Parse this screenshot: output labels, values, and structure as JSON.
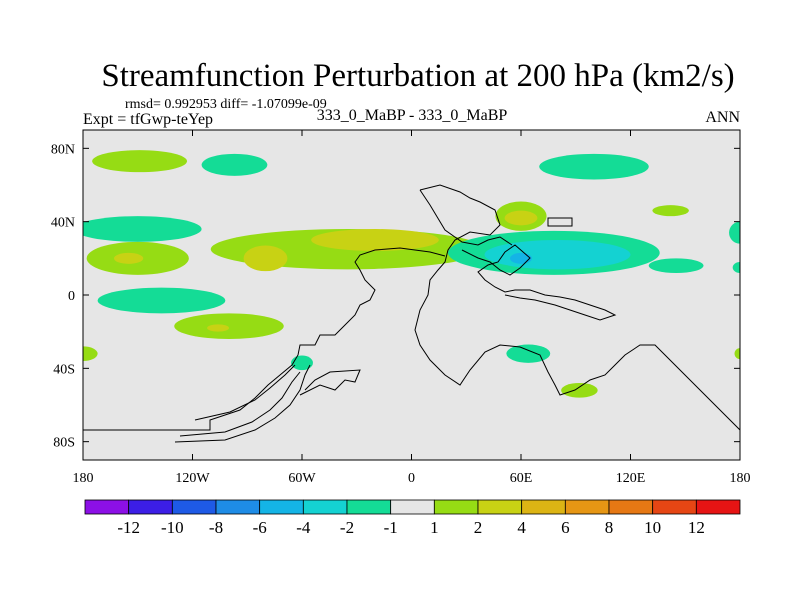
{
  "chart_data": {
    "type": "heatmap",
    "title": "Streamfunction Perturbation at 200 hPa (km2/s)",
    "stats_line": "rmsd= 0.992953 diff= -1.07099e-09",
    "experiment": "Expt = tfGwp-teYep",
    "case_label": "333_0_MaBP - 333_0_MaBP",
    "period": "ANN",
    "xlim": [
      -180,
      180
    ],
    "ylim": [
      -90,
      90
    ],
    "x_ticks": [
      {
        "value": -180,
        "label": "180"
      },
      {
        "value": -120,
        "label": "120W"
      },
      {
        "value": -60,
        "label": "60W"
      },
      {
        "value": 0,
        "label": "0"
      },
      {
        "value": 60,
        "label": "60E"
      },
      {
        "value": 120,
        "label": "120E"
      },
      {
        "value": 180,
        "label": "180"
      }
    ],
    "y_ticks": [
      {
        "value": 80,
        "label": "80N"
      },
      {
        "value": 40,
        "label": "40N"
      },
      {
        "value": 0,
        "label": "0"
      },
      {
        "value": -40,
        "label": "40S"
      },
      {
        "value": -80,
        "label": "80S"
      }
    ],
    "field_background": "#e6e6e6",
    "colorbar": {
      "colors": [
        "#8c10e6",
        "#3c1ee6",
        "#1e5ae6",
        "#1e8ce6",
        "#14b4e6",
        "#14d2d2",
        "#14dc96",
        "#e6e6e6",
        "#96dc14",
        "#c8d214",
        "#dcb414",
        "#e69614",
        "#e67814",
        "#e64614",
        "#e61414"
      ],
      "labels": [
        "-12",
        "-10",
        "-8",
        "-6",
        "-4",
        "-2",
        "-1",
        "1",
        "2",
        "4",
        "6",
        "8",
        "10",
        "12"
      ]
    },
    "blobs": [
      {
        "lon": -149,
        "lat": 73,
        "rlon": 26,
        "rlat": 6,
        "class": "1-2",
        "color": "#96dc14"
      },
      {
        "lon": -97,
        "lat": 71,
        "rlon": 18,
        "rlat": 6,
        "class": "-2--1",
        "color": "#14dc96"
      },
      {
        "lon": 100,
        "lat": 70,
        "rlon": 30,
        "rlat": 7,
        "class": "-2--1",
        "color": "#14dc96"
      },
      {
        "lon": 142,
        "lat": 46,
        "rlon": 10,
        "rlat": 3,
        "class": "1-2",
        "color": "#96dc14"
      },
      {
        "lon": 60,
        "lat": 43,
        "rlon": 14,
        "rlat": 8,
        "class": "1-2",
        "color": "#96dc14"
      },
      {
        "lon": 60,
        "lat": 42,
        "rlon": 9,
        "rlat": 4,
        "class": "2-4",
        "color": "#c8d214"
      },
      {
        "lon": -150,
        "lat": 36,
        "rlon": 35,
        "rlat": 7,
        "class": "-2--1",
        "color": "#14dc96"
      },
      {
        "lon": -150,
        "lat": 20,
        "rlon": 28,
        "rlat": 9,
        "class": "1-2",
        "color": "#96dc14"
      },
      {
        "lon": -155,
        "lat": 20,
        "rlon": 8,
        "rlat": 3,
        "class": "2-4",
        "color": "#c8d214"
      },
      {
        "lon": -35,
        "lat": 25,
        "rlon": 75,
        "rlat": 11,
        "class": "1-2",
        "color": "#96dc14"
      },
      {
        "lon": -20,
        "lat": 30,
        "rlon": 35,
        "rlat": 6,
        "class": "2-4",
        "color": "#c8d214"
      },
      {
        "lon": -80,
        "lat": 20,
        "rlon": 12,
        "rlat": 7,
        "class": "2-4",
        "color": "#c8d214"
      },
      {
        "lon": 78,
        "lat": 23,
        "rlon": 58,
        "rlat": 12,
        "class": "-2--1",
        "color": "#14dc96"
      },
      {
        "lon": 80,
        "lat": 22,
        "rlon": 40,
        "rlat": 8,
        "class": "-4--2",
        "color": "#14d2d2"
      },
      {
        "lon": 60,
        "lat": 20,
        "rlon": 6,
        "rlat": 3,
        "class": "-6--4",
        "color": "#14b4e6"
      },
      {
        "lon": 145,
        "lat": 16,
        "rlon": 15,
        "rlat": 4,
        "class": "-2--1",
        "color": "#14dc96"
      },
      {
        "lon": 180,
        "lat": 34,
        "rlon": 6,
        "rlat": 6,
        "class": "-2--1",
        "color": "#14dc96"
      },
      {
        "lon": 180,
        "lat": 15,
        "rlon": 4,
        "rlat": 3,
        "class": "-2--1",
        "color": "#14dc96"
      },
      {
        "lon": -137,
        "lat": -3,
        "rlon": 35,
        "rlat": 7,
        "class": "-2--1",
        "color": "#14dc96"
      },
      {
        "lon": -100,
        "lat": -17,
        "rlon": 30,
        "rlat": 7,
        "class": "1-2",
        "color": "#96dc14"
      },
      {
        "lon": -106,
        "lat": -18,
        "rlon": 6,
        "rlat": 2,
        "class": "2-4",
        "color": "#c8d214"
      },
      {
        "lon": -180,
        "lat": -32,
        "rlon": 8,
        "rlat": 4,
        "class": "1-2",
        "color": "#96dc14"
      },
      {
        "lon": -60,
        "lat": -37,
        "rlon": 6,
        "rlat": 4,
        "class": "-2--1",
        "color": "#14dc96"
      },
      {
        "lon": 64,
        "lat": -32,
        "rlon": 12,
        "rlat": 5,
        "class": "-2--1",
        "color": "#14dc96"
      },
      {
        "lon": 92,
        "lat": -52,
        "rlon": 10,
        "rlat": 4,
        "class": "1-2",
        "color": "#96dc14"
      },
      {
        "lon": 180,
        "lat": -32,
        "rlon": 3,
        "rlat": 3,
        "class": "1-2",
        "color": "#96dc14"
      }
    ]
  }
}
